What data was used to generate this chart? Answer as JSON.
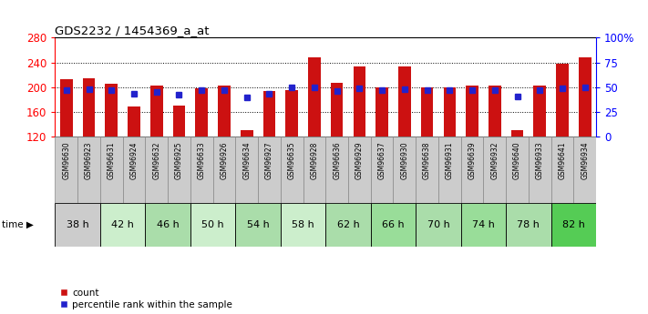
{
  "title": "GDS2232 / 1454369_a_at",
  "samples": [
    "GSM96630",
    "GSM96923",
    "GSM96631",
    "GSM96924",
    "GSM96632",
    "GSM96925",
    "GSM96633",
    "GSM96926",
    "GSM96634",
    "GSM96927",
    "GSM96635",
    "GSM96928",
    "GSM96636",
    "GSM96929",
    "GSM96637",
    "GSM96930",
    "GSM96638",
    "GSM96931",
    "GSM96639",
    "GSM96932",
    "GSM96640",
    "GSM96933",
    "GSM96641",
    "GSM96934"
  ],
  "time_groups": [
    {
      "label": "38 h",
      "indices": [
        0,
        1
      ],
      "color": "#cccccc"
    },
    {
      "label": "42 h",
      "indices": [
        2,
        3
      ],
      "color": "#cceecc"
    },
    {
      "label": "46 h",
      "indices": [
        4,
        5
      ],
      "color": "#aaddaa"
    },
    {
      "label": "50 h",
      "indices": [
        6,
        7
      ],
      "color": "#cceecc"
    },
    {
      "label": "54 h",
      "indices": [
        8,
        9
      ],
      "color": "#aaddaa"
    },
    {
      "label": "58 h",
      "indices": [
        10,
        11
      ],
      "color": "#cceecc"
    },
    {
      "label": "62 h",
      "indices": [
        12,
        13
      ],
      "color": "#aaddaa"
    },
    {
      "label": "66 h",
      "indices": [
        14,
        15
      ],
      "color": "#99dd99"
    },
    {
      "label": "70 h",
      "indices": [
        16,
        17
      ],
      "color": "#aaddaa"
    },
    {
      "label": "74 h",
      "indices": [
        18,
        19
      ],
      "color": "#99dd99"
    },
    {
      "label": "78 h",
      "indices": [
        20,
        21
      ],
      "color": "#aaddaa"
    },
    {
      "label": "82 h",
      "indices": [
        22,
        23
      ],
      "color": "#55cc55"
    }
  ],
  "count_values": [
    213,
    215,
    205,
    168,
    202,
    170,
    198,
    203,
    130,
    193,
    195,
    248,
    207,
    233,
    200,
    233,
    200,
    200,
    203,
    202,
    130,
    203,
    238,
    248
  ],
  "percentile_values": [
    47,
    48,
    47,
    43,
    45,
    42,
    47,
    47,
    40,
    43,
    50,
    50,
    46,
    49,
    47,
    48,
    47,
    47,
    47,
    47,
    41,
    47,
    49,
    50
  ],
  "bar_color": "#cc1111",
  "percentile_color": "#2222cc",
  "y_min": 120,
  "y_max": 280,
  "y_ticks": [
    120,
    160,
    200,
    240,
    280
  ],
  "y2_ticks": [
    0,
    25,
    50,
    75,
    100
  ],
  "bar_width": 0.55,
  "sample_bg_color": "#cccccc"
}
